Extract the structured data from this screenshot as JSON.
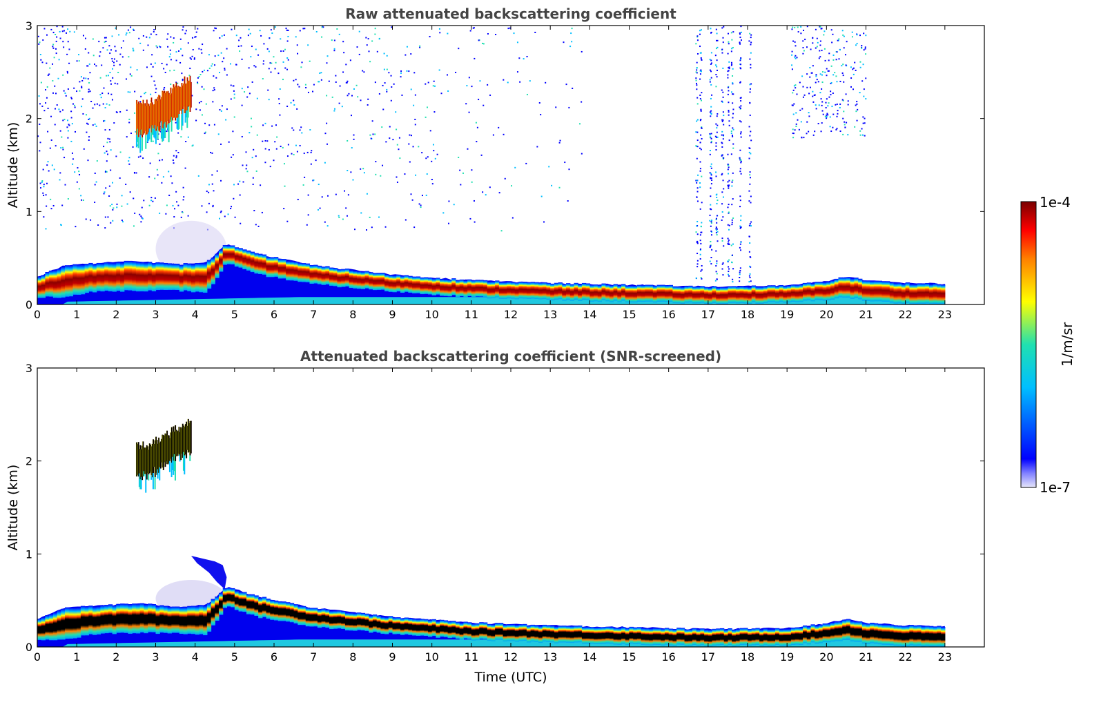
{
  "chart_data": [
    {
      "type": "heatmap",
      "title": "Raw attenuated backscattering coefficient",
      "xlabel": "",
      "ylabel": "Altitude (km)",
      "xlim": [
        0,
        24
      ],
      "ylim": [
        0,
        3
      ],
      "x_ticks": [
        "0",
        "1",
        "2",
        "3",
        "4",
        "5",
        "6",
        "7",
        "8",
        "9",
        "10",
        "11",
        "12",
        "13",
        "14",
        "15",
        "16",
        "17",
        "18",
        "19",
        "20",
        "21",
        "22",
        "23"
      ],
      "y_ticks": [
        "0",
        "1",
        "2",
        "3"
      ],
      "data_end_time": 23,
      "features": [
        {
          "name": "aerosol-layer",
          "x": [
            0,
            0.7,
            1.5,
            2.5,
            3.5,
            4.3,
            4.8,
            5.5,
            7,
            9,
            11,
            13,
            15,
            17,
            19,
            20,
            20.5,
            21,
            22,
            23
          ],
          "top": [
            0.3,
            0.42,
            0.44,
            0.47,
            0.43,
            0.45,
            0.65,
            0.55,
            0.42,
            0.32,
            0.26,
            0.23,
            0.21,
            0.19,
            0.2,
            0.25,
            0.3,
            0.26,
            0.23,
            0.22
          ],
          "peak": [
            0.2,
            0.26,
            0.3,
            0.32,
            0.3,
            0.3,
            0.56,
            0.45,
            0.33,
            0.24,
            0.18,
            0.15,
            0.13,
            0.11,
            0.12,
            0.16,
            0.2,
            0.16,
            0.13,
            0.12
          ]
        },
        {
          "name": "elevated-cloud",
          "time_range": [
            2.5,
            3.9
          ],
          "altitude_range": [
            1.6,
            2.4
          ]
        },
        {
          "name": "noise-region",
          "time_range": [
            0,
            14
          ],
          "altitude_range": [
            0.8,
            3.0
          ]
        },
        {
          "name": "noise-streaks",
          "time_range": [
            16.5,
            18.1
          ],
          "altitude_range": [
            0.25,
            3.0
          ]
        },
        {
          "name": "noise-patch",
          "time_range": [
            19.1,
            21
          ],
          "altitude_range": [
            1.8,
            3.0
          ]
        }
      ]
    },
    {
      "type": "heatmap",
      "title": "Attenuated backscattering coefficient (SNR-screened)",
      "xlabel": "Time (UTC)",
      "ylabel": "Altitude (km)",
      "xlim": [
        0,
        24
      ],
      "ylim": [
        0,
        3
      ],
      "x_ticks": [
        "0",
        "1",
        "2",
        "3",
        "4",
        "5",
        "6",
        "7",
        "8",
        "9",
        "10",
        "11",
        "12",
        "13",
        "14",
        "15",
        "16",
        "17",
        "18",
        "19",
        "20",
        "21",
        "22",
        "23"
      ],
      "y_ticks": [
        "0",
        "1",
        "2",
        "3"
      ],
      "data_end_time": 23,
      "features": [
        {
          "name": "aerosol-layer-screened",
          "saturated_color": "#000000"
        },
        {
          "name": "elevated-cloud-screened",
          "time_range": [
            2.5,
            3.9
          ],
          "altitude_range": [
            1.6,
            2.4
          ]
        },
        {
          "name": "plume-at-5h",
          "time_range": [
            3.9,
            4.8
          ],
          "altitude_range": [
            0.6,
            0.98
          ]
        }
      ]
    }
  ],
  "colorbar": {
    "label": "1/m/sr",
    "min_label": "1e-7",
    "max_label": "1e-4",
    "scale": "log",
    "colormap": "jet",
    "colors": [
      "#e6e6fa",
      "#0000ff",
      "#00bfff",
      "#20e0b0",
      "#ffff00",
      "#ff8000",
      "#ff0000",
      "#7a0000"
    ]
  }
}
